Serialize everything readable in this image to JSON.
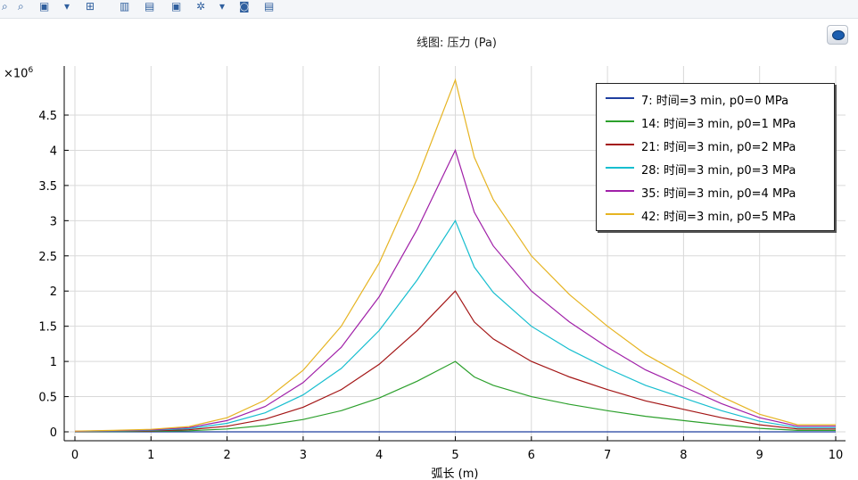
{
  "toolbar": {
    "icons": [
      {
        "name": "zoom-in-icon",
        "glyph": "⌕"
      },
      {
        "name": "zoom-out-icon",
        "glyph": "⌕"
      },
      {
        "name": "zoom-box-icon",
        "glyph": "▣"
      },
      {
        "name": "dropdown-icon",
        "glyph": "▾"
      },
      {
        "name": "grid-icon",
        "glyph": "⊞"
      },
      {
        "name": "axis-icon",
        "glyph": "▥"
      },
      {
        "name": "table-icon",
        "glyph": "▤"
      },
      {
        "name": "plot-icon",
        "glyph": "▣"
      },
      {
        "name": "scene-light-icon",
        "glyph": "✲"
      },
      {
        "name": "dropdown-icon-2",
        "glyph": "▾"
      },
      {
        "name": "camera-icon",
        "glyph": "◙"
      },
      {
        "name": "print-icon",
        "glyph": "▤"
      }
    ]
  },
  "chart_data": {
    "type": "line",
    "title": "线图: 压力 (Pa)",
    "xlabel": "弧长 (m)",
    "ylabel": "",
    "scale_label": "×10",
    "scale_exponent": "6",
    "xlim": [
      -0.15,
      10.15
    ],
    "ylim": [
      -0.1,
      5.2
    ],
    "xticks": [
      "0",
      "1",
      "2",
      "3",
      "4",
      "5",
      "6",
      "7",
      "8",
      "9",
      "10"
    ],
    "xtick_values": [
      0,
      1,
      2,
      3,
      4,
      5,
      6,
      7,
      8,
      9,
      10
    ],
    "yticks": [
      "0",
      "0.5",
      "1",
      "1.5",
      "2",
      "2.5",
      "3",
      "3.5",
      "4",
      "4.5"
    ],
    "ytick_values": [
      0,
      0.5,
      1,
      1.5,
      2,
      2.5,
      3,
      3.5,
      4,
      4.5
    ],
    "grid": true,
    "legend_position": "top-right",
    "x": [
      0,
      0.5,
      1,
      1.5,
      2,
      2.5,
      3,
      3.5,
      4,
      4.5,
      5,
      5.25,
      5.5,
      6,
      6.5,
      7,
      7.5,
      8,
      8.5,
      9,
      9.5,
      10
    ],
    "series": [
      {
        "name": "7: 时间=3 min, p0=0 MPa",
        "color": "#1f3f9f",
        "values": [
          0,
          0,
          0,
          0,
          0,
          0,
          0,
          0,
          0,
          0,
          0,
          0,
          0,
          0,
          0,
          0,
          0,
          0,
          0,
          0,
          0,
          0
        ]
      },
      {
        "name": "14: 时间=3 min, p0=1 MPa",
        "color": "#2ca02c",
        "values": [
          0.002,
          0.004,
          0.007,
          0.015,
          0.04,
          0.09,
          0.175,
          0.3,
          0.48,
          0.72,
          1.0,
          0.78,
          0.66,
          0.5,
          0.39,
          0.3,
          0.22,
          0.16,
          0.1,
          0.05,
          0.02,
          0.02
        ]
      },
      {
        "name": "21: 时间=3 min, p0=2 MPa",
        "color": "#a31515",
        "values": [
          0.004,
          0.008,
          0.014,
          0.03,
          0.08,
          0.18,
          0.35,
          0.6,
          0.96,
          1.44,
          2.0,
          1.56,
          1.32,
          1.0,
          0.78,
          0.6,
          0.44,
          0.32,
          0.2,
          0.1,
          0.04,
          0.04
        ]
      },
      {
        "name": "28: 时间=3 min, p0=3 MPa",
        "color": "#17becf",
        "values": [
          0.006,
          0.012,
          0.021,
          0.045,
          0.12,
          0.27,
          0.525,
          0.9,
          1.44,
          2.16,
          3.0,
          2.34,
          1.98,
          1.5,
          1.17,
          0.9,
          0.66,
          0.48,
          0.3,
          0.15,
          0.06,
          0.06
        ]
      },
      {
        "name": "35: 时间=3 min, p0=4 MPa",
        "color": "#a020a8",
        "values": [
          0.008,
          0.016,
          0.028,
          0.06,
          0.16,
          0.36,
          0.7,
          1.2,
          1.92,
          2.88,
          4.0,
          3.12,
          2.64,
          2.0,
          1.56,
          1.2,
          0.88,
          0.64,
          0.4,
          0.2,
          0.08,
          0.08
        ]
      },
      {
        "name": "42: 时间=3 min, p0=5 MPa",
        "color": "#e6b422",
        "values": [
          0.01,
          0.02,
          0.035,
          0.075,
          0.2,
          0.45,
          0.875,
          1.5,
          2.4,
          3.6,
          5.0,
          3.9,
          3.3,
          2.5,
          1.95,
          1.5,
          1.1,
          0.8,
          0.5,
          0.25,
          0.1,
          0.1
        ]
      }
    ]
  }
}
